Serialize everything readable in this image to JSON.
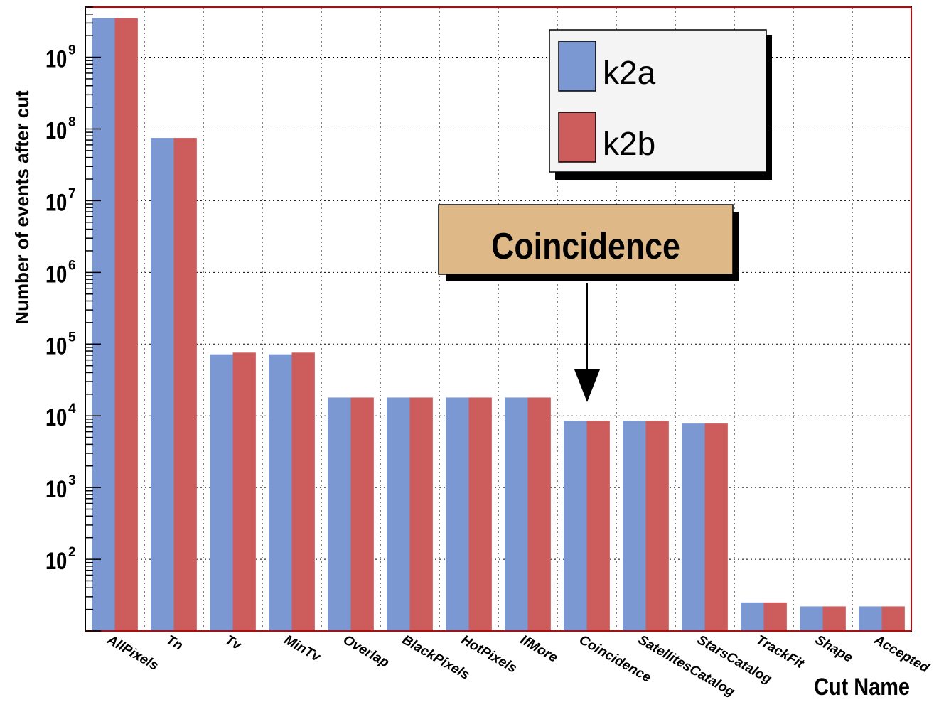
{
  "chart_data": {
    "type": "bar",
    "title": "",
    "xlabel": "Cut Name",
    "ylabel": "Number of events after cut",
    "yscale": "log",
    "ylim": [
      10,
      5000000000
    ],
    "grid": true,
    "legend_position": "top-right",
    "categories": [
      "AllPixels",
      "Tn",
      "Tv",
      "MinTv",
      "Overlap",
      "BlackPixels",
      "HotPixels",
      "IfMore",
      "Coincidence",
      "SatellitesCatalog",
      "StarsCatalog",
      "TrackFit",
      "Shape",
      "Accepted"
    ],
    "series": [
      {
        "name": "k2a",
        "color": "#7b98d2",
        "values": [
          3500000000,
          75000000,
          72000,
          72000,
          18000,
          18000,
          18000,
          18000,
          8500,
          8500,
          7800,
          25,
          22,
          22
        ]
      },
      {
        "name": "k2b",
        "color": "#cd5c5c",
        "values": [
          3500000000,
          75000000,
          76000,
          76000,
          18000,
          18000,
          18000,
          18000,
          8500,
          8500,
          7800,
          25,
          22,
          22
        ]
      }
    ],
    "y_tick_labels": [
      {
        "base": "10",
        "exp": "2"
      },
      {
        "base": "10",
        "exp": "3"
      },
      {
        "base": "10",
        "exp": "4"
      },
      {
        "base": "10",
        "exp": "5"
      },
      {
        "base": "10",
        "exp": "6"
      },
      {
        "base": "10",
        "exp": "7"
      },
      {
        "base": "10",
        "exp": "8"
      },
      {
        "base": "10",
        "exp": "9"
      }
    ],
    "annotation": {
      "text": "Coincidence",
      "target": "Coincidence",
      "color": "#deb887"
    }
  }
}
